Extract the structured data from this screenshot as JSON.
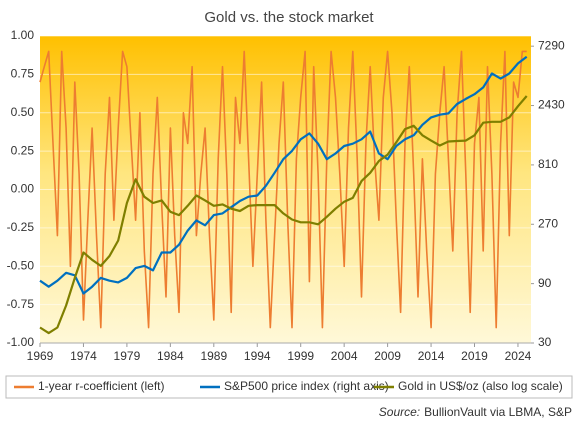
{
  "chart_data": {
    "type": "line",
    "title": "Gold vs. the stock market",
    "xlim": [
      1969,
      2025.5
    ],
    "xticks": [
      1969,
      1974,
      1979,
      1984,
      1989,
      1994,
      1999,
      2004,
      2009,
      2014,
      2019,
      2024
    ],
    "ylim": [
      -1,
      1
    ],
    "yticks": [
      {
        "value": -1,
        "label": "-1.00"
      },
      {
        "value": -0.75,
        "label": "-0.75"
      },
      {
        "value": -0.5,
        "label": "-0.50"
      },
      {
        "value": -0.25,
        "label": "-0.25"
      },
      {
        "value": 0,
        "label": "0.00"
      },
      {
        "value": 0.25,
        "label": "0.25"
      },
      {
        "value": 0.5,
        "label": "0.50"
      },
      {
        "value": 0.75,
        "label": "0.75"
      },
      {
        "value": 1,
        "label": "1.00"
      }
    ],
    "y2lim": [
      30,
      8800
    ],
    "y2ticks": [
      30,
      90,
      270,
      810,
      2430,
      7290
    ],
    "y2_log": true,
    "grid": true,
    "series": [
      {
        "name": "1-year r-coefficient (left)",
        "color": "#ed7d31",
        "x": [
          1969,
          1969.5,
          1970,
          1970.5,
          1971,
          1971.5,
          1972,
          1972.5,
          1973,
          1973.5,
          1974,
          1974.5,
          1975,
          1975.5,
          1976,
          1976.5,
          1977,
          1977.5,
          1978,
          1978.5,
          1979,
          1979.5,
          1980,
          1980.5,
          1981,
          1981.5,
          1982,
          1982.5,
          1983,
          1983.5,
          1984,
          1984.5,
          1985,
          1985.5,
          1986,
          1986.5,
          1987,
          1987.5,
          1988,
          1988.5,
          1989,
          1989.5,
          1990,
          1990.5,
          1991,
          1991.5,
          1992,
          1992.5,
          1993,
          1993.5,
          1994,
          1994.5,
          1995,
          1995.5,
          1996,
          1996.5,
          1997,
          1997.5,
          1998,
          1998.5,
          1999,
          1999.5,
          2000,
          2000.5,
          2001,
          2001.5,
          2002,
          2002.5,
          2003,
          2003.5,
          2004,
          2004.5,
          2005,
          2005.5,
          2006,
          2006.5,
          2007,
          2007.5,
          2008,
          2008.5,
          2009,
          2009.5,
          2010,
          2010.5,
          2011,
          2011.5,
          2012,
          2012.5,
          2013,
          2013.5,
          2014,
          2014.5,
          2015,
          2015.5,
          2016,
          2016.5,
          2017,
          2017.5,
          2018,
          2018.5,
          2019,
          2019.5,
          2020,
          2020.5,
          2021,
          2021.5,
          2022,
          2022.5,
          2023,
          2023.5,
          2024,
          2024.5,
          2025
        ],
        "values": [
          0.7,
          0.8,
          0.9,
          0.3,
          -0.3,
          0.9,
          0.4,
          -0.5,
          0.7,
          0.1,
          -0.85,
          -0.2,
          0.4,
          -0.3,
          -0.9,
          0.1,
          0.6,
          -0.2,
          0.4,
          0.9,
          0.8,
          0.3,
          -0.2,
          0.5,
          -0.4,
          -0.9,
          0.1,
          0.6,
          -0.1,
          -0.7,
          0.4,
          -0.3,
          -0.8,
          0.5,
          0.3,
          0.8,
          -0.3,
          0.1,
          0.4,
          -0.3,
          -0.85,
          0.2,
          0.8,
          0.1,
          -0.8,
          0.6,
          0.3,
          0.9,
          0.2,
          -0.5,
          0.1,
          0.7,
          -0.2,
          -0.9,
          -0.3,
          0.3,
          0.7,
          -0.2,
          -0.9,
          0.2,
          0.6,
          0.9,
          -0.6,
          0.8,
          0.1,
          -0.9,
          0.2,
          0.9,
          0.6,
          0.1,
          -0.5,
          0.4,
          0.9,
          0.2,
          -0.7,
          0.3,
          0.8,
          0.2,
          -0.2,
          0.6,
          0.9,
          0.5,
          -0.2,
          -0.8,
          0.3,
          0.8,
          0.1,
          -0.7,
          0.2,
          -0.4,
          -0.9,
          0.1,
          0.5,
          0.8,
          0.2,
          -0.4,
          0.5,
          0.9,
          0.1,
          -0.8,
          0.3,
          0.6,
          -0.4,
          0.8,
          0.1,
          -0.9,
          0.3,
          0.9,
          -0.3,
          0.7,
          0.6,
          0.9,
          0.9
        ]
      },
      {
        "name": "S&P500 price index (right axis)",
        "color": "#0070c0",
        "axis": "y2",
        "x": [
          1969,
          1970,
          1971,
          1972,
          1973,
          1974,
          1975,
          1976,
          1977,
          1978,
          1979,
          1980,
          1981,
          1982,
          1983,
          1984,
          1985,
          1986,
          1987,
          1988,
          1989,
          1990,
          1991,
          1992,
          1993,
          1994,
          1995,
          1996,
          1997,
          1998,
          1999,
          2000,
          2001,
          2002,
          2003,
          2004,
          2005,
          2006,
          2007,
          2008,
          2009,
          2010,
          2011,
          2012,
          2013,
          2014,
          2015,
          2016,
          2017,
          2018,
          2019,
          2020,
          2021,
          2022,
          2023,
          2024,
          2025
        ],
        "values": [
          95,
          85,
          95,
          110,
          105,
          75,
          85,
          100,
          95,
          92,
          100,
          120,
          125,
          115,
          160,
          160,
          185,
          240,
          290,
          265,
          320,
          330,
          370,
          415,
          450,
          460,
          550,
          700,
          900,
          1050,
          1300,
          1450,
          1200,
          900,
          1000,
          1150,
          1200,
          1300,
          1500,
          1000,
          900,
          1150,
          1300,
          1400,
          1700,
          1950,
          2050,
          2100,
          2500,
          2750,
          3000,
          3400,
          4400,
          4000,
          4400,
          5300,
          6000
        ]
      },
      {
        "name": "Gold in US$/oz (also log scale)",
        "color": "#7f7f00",
        "axis": "y2",
        "x": [
          1969,
          1970,
          1971,
          1972,
          1973,
          1974,
          1975,
          1976,
          1977,
          1978,
          1979,
          1980,
          1981,
          1982,
          1983,
          1984,
          1985,
          1986,
          1987,
          1988,
          1989,
          1990,
          1991,
          1992,
          1993,
          1994,
          1995,
          1996,
          1997,
          1998,
          1999,
          2000,
          2001,
          2002,
          2003,
          2004,
          2005,
          2006,
          2007,
          2008,
          2009,
          2010,
          2011,
          2012,
          2013,
          2014,
          2015,
          2016,
          2017,
          2018,
          2019,
          2020,
          2021,
          2022,
          2023,
          2024,
          2025
        ],
        "values": [
          40,
          36,
          40,
          60,
          100,
          160,
          140,
          125,
          150,
          200,
          400,
          620,
          450,
          400,
          420,
          340,
          320,
          380,
          460,
          420,
          380,
          390,
          360,
          345,
          380,
          385,
          385,
          385,
          330,
          295,
          280,
          280,
          270,
          310,
          360,
          410,
          440,
          600,
          700,
          870,
          980,
          1230,
          1570,
          1670,
          1400,
          1270,
          1160,
          1250,
          1260,
          1270,
          1400,
          1770,
          1800,
          1800,
          1950,
          2400,
          2900
        ]
      }
    ],
    "source_label": "Source:",
    "source": "BullionVault via LBMA, S&P"
  }
}
